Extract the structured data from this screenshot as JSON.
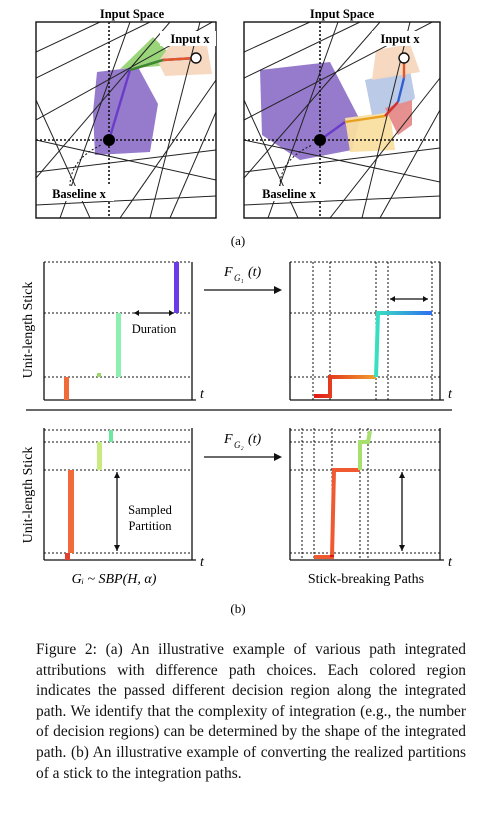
{
  "figure": {
    "panel_a": {
      "left_title": "Input Space",
      "right_title": "Input Space",
      "input_label": "Input x",
      "baseline_label": "Baseline x",
      "sub_label": "(a)"
    },
    "panel_b": {
      "y_axis_label": "Unit-length Stick",
      "t_label": "t",
      "func_top": "F",
      "func_top_sub": "G₁",
      "func_top_arg": "(t)",
      "func_bottom": "F",
      "func_bottom_sub": "G₂",
      "func_bottom_arg": "(t)",
      "duration_label": "Duration",
      "sampled_label_1": "Sampled",
      "sampled_label_2": "Partition",
      "formula": "Gᵢ ~ SBP(H, α)",
      "right_caption": "Stick-breaking Paths",
      "sub_label": "(b)"
    },
    "caption": "Figure 2: (a) An illustrative example of various path integrated attributions with difference path choices. Each colored region indicates the passed different decision region along the integrated path. We identify that the complexity of integration (e.g., the number of decision regions) can be determined by the shape of the integrated path. (b) An illustrative example of converting the realized partitions of a stick to the integration paths."
  }
}
